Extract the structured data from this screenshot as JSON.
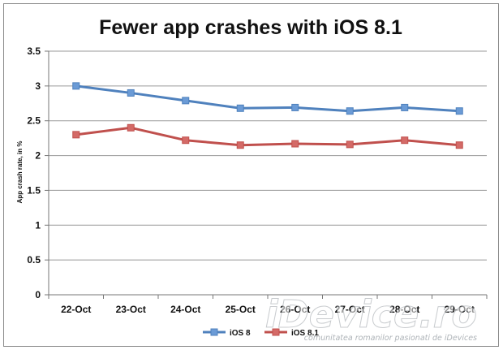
{
  "chart_data": {
    "type": "line",
    "title": "Fewer app crashes with iOS 8.1",
    "xlabel": "",
    "ylabel": "App crash rate, in %",
    "categories": [
      "22-Oct",
      "23-Oct",
      "24-Oct",
      "25-Oct",
      "26-Oct",
      "27-Oct",
      "28-Oct",
      "29-Oct"
    ],
    "ylim": [
      0,
      3.5
    ],
    "yticks": [
      "0",
      "0.5",
      "1",
      "1.5",
      "2",
      "2.5",
      "3",
      "3.5"
    ],
    "grid": true,
    "legend_position": "bottom",
    "series": [
      {
        "name": "iOS 8",
        "color": "#6b9bd6",
        "line_color": "#4f81bd",
        "values": [
          3.0,
          2.9,
          2.79,
          2.68,
          2.69,
          2.64,
          2.69,
          2.64
        ]
      },
      {
        "name": "iOS 8.1",
        "color": "#d46a67",
        "line_color": "#c0504d",
        "values": [
          2.3,
          2.4,
          2.22,
          2.15,
          2.17,
          2.16,
          2.22,
          2.15
        ]
      }
    ]
  },
  "watermark": {
    "text": "iDevice.ro",
    "subtext": "comunitatea romanilor pasionati de iDevices"
  }
}
